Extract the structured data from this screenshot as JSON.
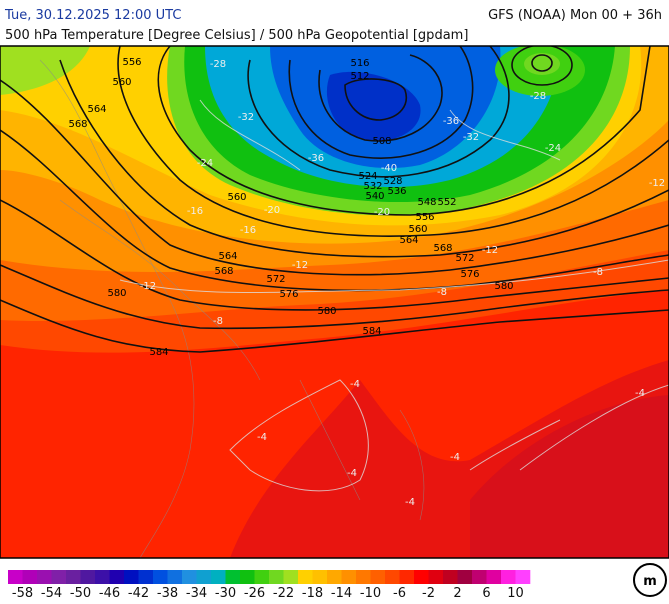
{
  "header": {
    "datetime": "Tue, 30.12.2025 12:00 UTC",
    "model": "GFS (NOAA) Mon 00 + 36h",
    "subtitle": "500 hPa Temperature [Degree Celsius] / 500 hPa Geopotential [gpdam]"
  },
  "map": {
    "geopotential_labels": [
      516,
      556,
      560,
      564,
      568,
      512,
      508,
      524,
      532,
      540,
      528,
      536,
      548,
      552,
      556,
      560,
      564,
      568,
      572,
      576,
      580,
      560,
      564,
      568,
      572,
      576,
      580,
      580,
      584,
      584
    ],
    "temperature_labels": [
      -28,
      -32,
      -36,
      -40,
      -36,
      -32,
      -28,
      -24,
      -24,
      -20,
      -20,
      -16,
      -12,
      -12,
      -8,
      -8,
      -8,
      -12,
      -4,
      -4,
      -4,
      -4,
      -4,
      -4,
      -16,
      -12
    ]
  },
  "colorbar": {
    "range": [
      -60,
      12
    ],
    "ticks": [
      -58,
      -54,
      -50,
      -46,
      -42,
      -38,
      -34,
      -30,
      -26,
      -22,
      -18,
      -14,
      -10,
      -6,
      -2,
      2,
      6,
      10
    ],
    "colors": [
      "#c800c8",
      "#b000b8",
      "#9a10b0",
      "#8020a8",
      "#6a20a0",
      "#5018a0",
      "#3c10a8",
      "#2000b0",
      "#0010c0",
      "#0030d0",
      "#0050e0",
      "#1070e0",
      "#2090e0",
      "#10a0d0",
      "#00b0c0",
      "#00c030",
      "#10c010",
      "#40d010",
      "#70d820",
      "#a0e020",
      "#ffd000",
      "#ffc000",
      "#ffa800",
      "#ff9000",
      "#ff7800",
      "#ff6000",
      "#ff4800",
      "#ff2800",
      "#ff0000",
      "#e00010",
      "#c00020",
      "#a00040",
      "#c00070",
      "#e000a0",
      "#ff20e0",
      "#ff40ff"
    ]
  }
}
